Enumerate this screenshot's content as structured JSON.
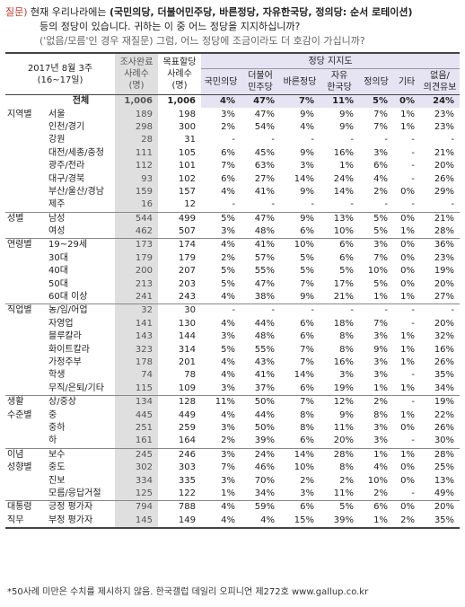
{
  "question": {
    "tag": "질문)",
    "line1_pre": "현재 우리나라에는",
    "line1_bold": "(국민의당, 더불어민주당, 바른정당, 자유한국당, 정의당: 순서 로테이션)",
    "line2": "등의 정당이 있습니다. 귀하는 이 중 어느 정당을 지지하십니까?",
    "line3": "('없음/모름'인 경우 재질문) 그럼, 어느 정당에 조금이라도 더 호감이 가십니까?"
  },
  "header": {
    "date_label": "2017년 8월 3주",
    "date_range": "(16~17일)",
    "col_sample_done": "조사완료",
    "col_sample_done2": "사례수",
    "col_sample_done3": "(명)",
    "col_sample_target": "목표할당",
    "col_sample_target2": "사례수",
    "col_sample_target3": "(명)",
    "party_support": "정당 지지도",
    "parties": [
      "국민의당",
      "더불어\n민주당",
      "바른정당",
      "자유\n한국당",
      "정의당",
      "기타",
      "없음/\n의견유보"
    ]
  },
  "rows": [
    {
      "group": "",
      "sub": "전체",
      "a": "1,006",
      "b": "1,006",
      "v": [
        "4%",
        "47%",
        "7%",
        "11%",
        "5%",
        "0%",
        "24%"
      ],
      "total": true
    },
    {
      "group": "지역별",
      "sub": "서울",
      "a": "189",
      "b": "198",
      "v": [
        "3%",
        "47%",
        "9%",
        "9%",
        "7%",
        "1%",
        "23%"
      ]
    },
    {
      "group": "",
      "sub": "인천/경기",
      "a": "298",
      "b": "300",
      "v": [
        "2%",
        "54%",
        "4%",
        "9%",
        "7%",
        "1%",
        "23%"
      ]
    },
    {
      "group": "",
      "sub": "강원",
      "a": "28",
      "b": "31",
      "v": [
        "-",
        "-",
        "-",
        "-",
        "-",
        "-",
        "-"
      ]
    },
    {
      "group": "",
      "sub": "대전/세종/충청",
      "a": "111",
      "b": "105",
      "v": [
        "6%",
        "45%",
        "9%",
        "16%",
        "3%",
        "-",
        "21%"
      ]
    },
    {
      "group": "",
      "sub": "광주/전라",
      "a": "112",
      "b": "101",
      "v": [
        "7%",
        "63%",
        "3%",
        "1%",
        "6%",
        "-",
        "20%"
      ]
    },
    {
      "group": "",
      "sub": "대구/경북",
      "a": "93",
      "b": "102",
      "v": [
        "6%",
        "27%",
        "14%",
        "24%",
        "4%",
        "-",
        "26%"
      ]
    },
    {
      "group": "",
      "sub": "부산/울산/경남",
      "a": "159",
      "b": "157",
      "v": [
        "4%",
        "41%",
        "9%",
        "14%",
        "2%",
        "0%",
        "29%"
      ]
    },
    {
      "group": "",
      "sub": "제주",
      "a": "16",
      "b": "12",
      "v": [
        "-",
        "-",
        "-",
        "-",
        "-",
        "-",
        "-"
      ]
    },
    {
      "group": "성별",
      "sub": "남성",
      "a": "544",
      "b": "499",
      "v": [
        "5%",
        "47%",
        "9%",
        "13%",
        "5%",
        "0%",
        "21%"
      ],
      "sep": true
    },
    {
      "group": "",
      "sub": "여성",
      "a": "462",
      "b": "507",
      "v": [
        "3%",
        "48%",
        "6%",
        "10%",
        "5%",
        "1%",
        "28%"
      ]
    },
    {
      "group": "연령별",
      "sub": "19~29세",
      "a": "173",
      "b": "174",
      "v": [
        "4%",
        "41%",
        "10%",
        "6%",
        "3%",
        "0%",
        "36%"
      ],
      "sep": true
    },
    {
      "group": "",
      "sub": "30대",
      "a": "179",
      "b": "179",
      "v": [
        "2%",
        "57%",
        "5%",
        "6%",
        "7%",
        "0%",
        "23%"
      ]
    },
    {
      "group": "",
      "sub": "40대",
      "a": "200",
      "b": "207",
      "v": [
        "5%",
        "55%",
        "5%",
        "5%",
        "10%",
        "0%",
        "19%"
      ]
    },
    {
      "group": "",
      "sub": "50대",
      "a": "213",
      "b": "203",
      "v": [
        "5%",
        "47%",
        "7%",
        "17%",
        "5%",
        "0%",
        "20%"
      ]
    },
    {
      "group": "",
      "sub": "60대 이상",
      "a": "241",
      "b": "243",
      "v": [
        "4%",
        "38%",
        "9%",
        "21%",
        "1%",
        "1%",
        "27%"
      ]
    },
    {
      "group": "직업별",
      "sub": "농/임/어업",
      "a": "32",
      "b": "30",
      "v": [
        "-",
        "-",
        "-",
        "-",
        "-",
        "-",
        "-"
      ],
      "sep": true
    },
    {
      "group": "",
      "sub": "자영업",
      "a": "141",
      "b": "130",
      "v": [
        "4%",
        "44%",
        "6%",
        "18%",
        "7%",
        "-",
        "20%"
      ]
    },
    {
      "group": "",
      "sub": "블루칼라",
      "a": "143",
      "b": "144",
      "v": [
        "3%",
        "48%",
        "6%",
        "8%",
        "3%",
        "1%",
        "32%"
      ]
    },
    {
      "group": "",
      "sub": "화이트칼라",
      "a": "323",
      "b": "314",
      "v": [
        "5%",
        "55%",
        "7%",
        "8%",
        "9%",
        "1%",
        "16%"
      ]
    },
    {
      "group": "",
      "sub": "가정주부",
      "a": "178",
      "b": "201",
      "v": [
        "4%",
        "43%",
        "7%",
        "16%",
        "3%",
        "1%",
        "26%"
      ]
    },
    {
      "group": "",
      "sub": "학생",
      "a": "74",
      "b": "78",
      "v": [
        "4%",
        "41%",
        "14%",
        "3%",
        "3%",
        "-",
        "35%"
      ]
    },
    {
      "group": "",
      "sub": "무직/은퇴/기타",
      "a": "115",
      "b": "109",
      "v": [
        "3%",
        "37%",
        "6%",
        "19%",
        "1%",
        "1%",
        "34%"
      ]
    },
    {
      "group": "생활",
      "sub": "상/중상",
      "a": "134",
      "b": "128",
      "v": [
        "11%",
        "50%",
        "7%",
        "12%",
        "2%",
        "-",
        "19%"
      ],
      "sep": true
    },
    {
      "group": "수준별",
      "sub": "중",
      "a": "445",
      "b": "449",
      "v": [
        "4%",
        "44%",
        "8%",
        "9%",
        "8%",
        "1%",
        "22%"
      ]
    },
    {
      "group": "",
      "sub": "중하",
      "a": "251",
      "b": "259",
      "v": [
        "3%",
        "50%",
        "8%",
        "11%",
        "3%",
        "0%",
        "26%"
      ]
    },
    {
      "group": "",
      "sub": "하",
      "a": "161",
      "b": "164",
      "v": [
        "2%",
        "39%",
        "6%",
        "20%",
        "3%",
        "-",
        "30%"
      ]
    },
    {
      "group": "이념",
      "sub": "보수",
      "a": "245",
      "b": "246",
      "v": [
        "3%",
        "24%",
        "14%",
        "28%",
        "1%",
        "1%",
        "28%"
      ],
      "sep": true
    },
    {
      "group": "성향별",
      "sub": "중도",
      "a": "302",
      "b": "303",
      "v": [
        "7%",
        "46%",
        "10%",
        "8%",
        "4%",
        "0%",
        "25%"
      ]
    },
    {
      "group": "",
      "sub": "진보",
      "a": "334",
      "b": "335",
      "v": [
        "3%",
        "70%",
        "2%",
        "2%",
        "10%",
        "0%",
        "13%"
      ]
    },
    {
      "group": "",
      "sub": "모름/응답거절",
      "a": "125",
      "b": "122",
      "v": [
        "1%",
        "34%",
        "3%",
        "11%",
        "2%",
        "-",
        "49%"
      ]
    },
    {
      "group": "대통령",
      "sub": "긍정 평가자",
      "a": "794",
      "b": "788",
      "v": [
        "4%",
        "59%",
        "6%",
        "5%",
        "6%",
        "0%",
        "20%"
      ],
      "sep": true
    },
    {
      "group": "직무",
      "sub": "부정 평가자",
      "a": "145",
      "b": "149",
      "v": [
        "4%",
        "4%",
        "15%",
        "39%",
        "1%",
        "2%",
        "35%"
      ]
    }
  ],
  "footnote": "*50사례 미만은 수치를 제시하지 않음. 한국갤럽 데일리 오피니언 제272호 www.gallup.co.kr"
}
